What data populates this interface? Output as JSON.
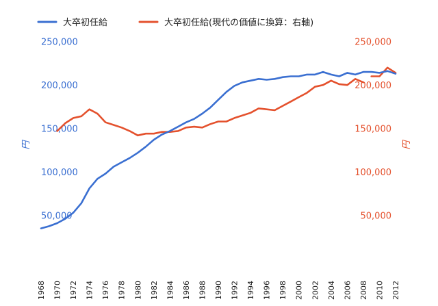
{
  "chart_data": {
    "type": "line",
    "title": "",
    "xlabel": "",
    "ylabel_left": "円",
    "ylabel_right": "円",
    "ylim_left": [
      0,
      260000
    ],
    "ylim_right": [
      0,
      260000
    ],
    "legend_position": "top-left",
    "grid": false,
    "left_ticks": [
      "50,000",
      "100,000",
      "150,000",
      "200,000",
      "250,000"
    ],
    "left_tick_values": [
      50000,
      100000,
      150000,
      200000,
      250000
    ],
    "right_ticks": [
      "50,000",
      "100,000",
      "150,000",
      "200,000",
      "250,000"
    ],
    "right_tick_values": [
      50000,
      100000,
      150000,
      200000,
      250000
    ],
    "x_ticks": [
      "1968",
      "1970",
      "1972",
      "1974",
      "1976",
      "1978",
      "1980",
      "1982",
      "1984",
      "1986",
      "1988",
      "1990",
      "1992",
      "1994",
      "1996",
      "1998",
      "2000",
      "2002",
      "2004",
      "2006",
      "2008",
      "2010",
      "2012"
    ],
    "x_tick_values": [
      1968,
      1970,
      1972,
      1974,
      1976,
      1978,
      1980,
      1982,
      1984,
      1986,
      1988,
      1990,
      1992,
      1994,
      1996,
      1998,
      2000,
      2002,
      2004,
      2006,
      2008,
      2010,
      2012
    ],
    "xlim": [
      1968,
      2012
    ],
    "series": [
      {
        "name": "大卒初任給",
        "axis": "left",
        "color": "#3a6fd1",
        "x": [
          1968,
          1969,
          1970,
          1971,
          1972,
          1973,
          1974,
          1975,
          1976,
          1977,
          1978,
          1979,
          1980,
          1981,
          1982,
          1983,
          1984,
          1985,
          1986,
          1987,
          1988,
          1989,
          1990,
          1991,
          1992,
          1993,
          1994,
          1995,
          1996,
          1997,
          1998,
          1999,
          2000,
          2001,
          2002,
          2003,
          2004,
          2005,
          2006,
          2007,
          2008,
          2009,
          2010,
          2011,
          2012
        ],
        "values": [
          35000,
          37500,
          41000,
          46000,
          53000,
          64000,
          81000,
          92000,
          98000,
          106000,
          111000,
          116000,
          122000,
          129000,
          137000,
          143000,
          147000,
          152000,
          157000,
          161000,
          167000,
          174000,
          183000,
          192000,
          199000,
          203000,
          205000,
          207000,
          206000,
          207000,
          209000,
          210000,
          210000,
          212000,
          212000,
          215000,
          212000,
          210000,
          214000,
          212000,
          215000,
          215000,
          214000,
          216000,
          213000
        ]
      },
      {
        "name": "大卒初任給(現代の価値に換算：右軸)",
        "axis": "right",
        "color": "#e4512d",
        "x": [
          1970,
          1971,
          1972,
          1973,
          1974,
          1975,
          1976,
          1977,
          1978,
          1979,
          1980,
          1981,
          1982,
          1983,
          1984,
          1985,
          1986,
          1987,
          1988,
          1989,
          1990,
          1991,
          1992,
          1993,
          1994,
          1995,
          1996,
          1997,
          1998,
          1999,
          2000,
          2001,
          2002,
          2003,
          2004,
          2005,
          2006,
          2007,
          2008
        ],
        "values": [
          147000,
          156000,
          162000,
          164000,
          172000,
          167000,
          157000,
          154000,
          151000,
          147000,
          142000,
          144000,
          144000,
          146000,
          146000,
          147000,
          151000,
          152000,
          151000,
          155000,
          158000,
          158000,
          162000,
          165000,
          168000,
          173000,
          172000,
          171000,
          176000,
          181000,
          186000,
          191000,
          198000,
          200000,
          205000,
          201000,
          200000,
          207000,
          203000
        ],
        "values_tail_note": "",
        "x2": [
          2009,
          2010,
          2011,
          2012
        ],
        "values2": [
          210000,
          210000,
          220000,
          214000
        ]
      }
    ]
  }
}
